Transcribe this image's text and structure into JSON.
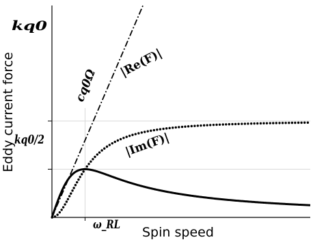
{
  "chart_data": {
    "type": "line",
    "title": "",
    "xlabel": "Spin speed",
    "ylabel": "Eddy current force",
    "x_tick_labels": [
      {
        "x": 1,
        "label": "ω_RL"
      }
    ],
    "y_tick_labels": [
      {
        "y": 0.5,
        "label": "kq0/2"
      },
      {
        "y": 1,
        "label": "kq0"
      }
    ],
    "xlim": [
      0,
      7.8
    ],
    "ylim": [
      0,
      1.1
    ],
    "grid": false,
    "series": [
      {
        "name": "|Re(F)|",
        "style": "dotted",
        "x": [
          0,
          0.25,
          0.5,
          0.75,
          1,
          1.5,
          2,
          2.5,
          3,
          3.5,
          4,
          5,
          6,
          7,
          7.8
        ],
        "y": [
          0,
          0.059,
          0.2,
          0.36,
          0.5,
          0.692,
          0.8,
          0.862,
          0.9,
          0.925,
          0.941,
          0.962,
          0.973,
          0.98,
          0.984
        ]
      },
      {
        "name": "|Im(F)|",
        "style": "solid",
        "x": [
          0,
          0.25,
          0.5,
          0.75,
          1,
          1.5,
          2,
          2.5,
          3,
          3.5,
          4,
          5,
          6,
          7,
          7.8
        ],
        "y": [
          0,
          0.235,
          0.4,
          0.48,
          0.5,
          0.462,
          0.4,
          0.345,
          0.3,
          0.264,
          0.235,
          0.192,
          0.162,
          0.14,
          0.127
        ]
      },
      {
        "name": "cq0Ω",
        "style": "dashdot",
        "x": [
          0,
          1.4
        ],
        "y": [
          0,
          1.12
        ]
      }
    ],
    "annotations": [
      {
        "text": "|Re(F)|",
        "series": "|Re(F)|"
      },
      {
        "text": "|Im(F)|",
        "series": "|Im(F)|"
      },
      {
        "text": "cq0Ω",
        "series": "cq0Ω"
      }
    ]
  }
}
